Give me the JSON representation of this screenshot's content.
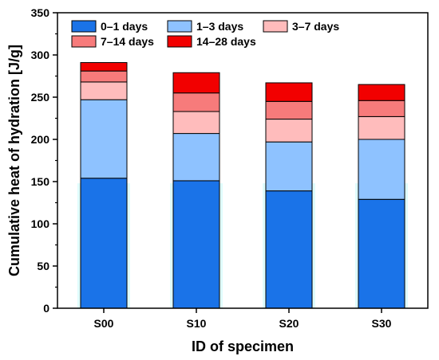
{
  "chart_data": {
    "type": "bar",
    "stacked": true,
    "categories": [
      "S00",
      "S10",
      "S20",
      "S30"
    ],
    "series": [
      {
        "name": "0–1 days",
        "values": [
          154,
          151,
          139,
          129
        ],
        "color": "#1a73e8"
      },
      {
        "name": "1–3 days",
        "values": [
          93,
          56,
          58,
          71
        ],
        "color": "#8ec2ff"
      },
      {
        "name": "3–7 days",
        "values": [
          21,
          26,
          27,
          27
        ],
        "color": "#ffbcbc"
      },
      {
        "name": "7–14 days",
        "values": [
          13,
          22,
          21,
          19
        ],
        "color": "#f77b7b"
      },
      {
        "name": "14–28 days",
        "values": [
          10,
          24,
          22,
          19
        ],
        "color": "#f20000"
      }
    ],
    "xlabel": "ID of specimen",
    "ylabel": "Cumulative heat of hydration [J/g]",
    "ylim": [
      0,
      350
    ],
    "yticks": [
      0,
      50,
      100,
      150,
      200,
      250,
      300,
      350
    ],
    "grid": false,
    "legend_position": "top-left",
    "background_band_color": "#dffcfc"
  }
}
